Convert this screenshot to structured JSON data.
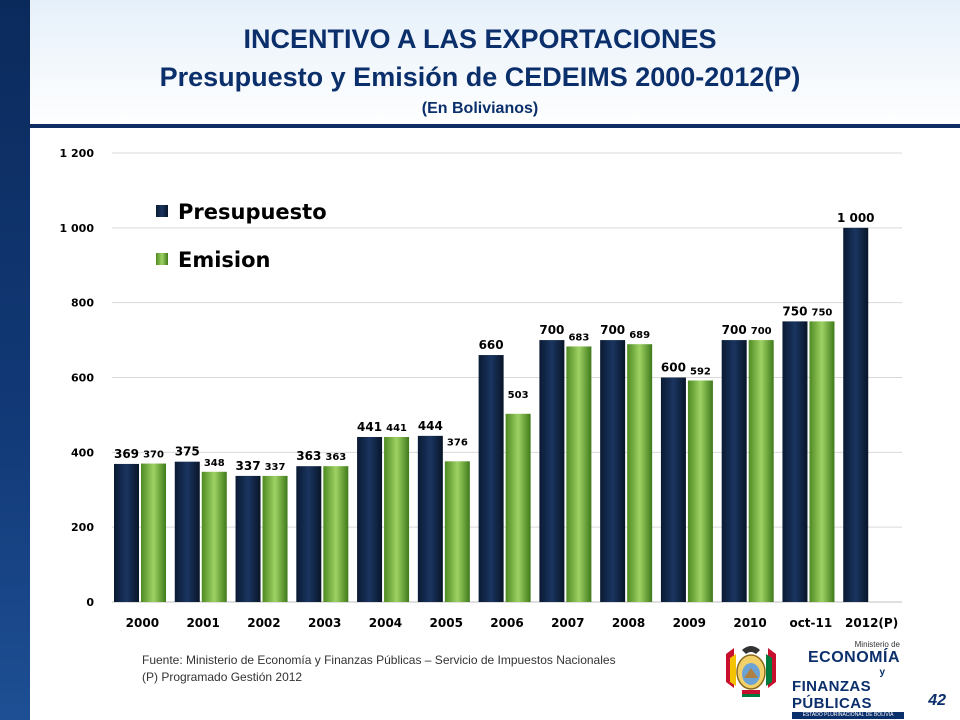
{
  "header": {
    "title_line1": "INCENTIVO A LAS EXPORTACIONES",
    "title_line2": "Presupuesto y Emisión de CEDEIMS 2000-2012(P)",
    "subtitle": "(En Bolivianos)"
  },
  "chart_data": {
    "type": "bar",
    "categories": [
      "2000",
      "2001",
      "2002",
      "2003",
      "2004",
      "2005",
      "2006",
      "2007",
      "2008",
      "2009",
      "2010",
      "oct-11",
      "2012(P)"
    ],
    "series": [
      {
        "name": "Presupuesto",
        "color": "#0c1e3d",
        "values": [
          369,
          375,
          337,
          363,
          441,
          444,
          660,
          700,
          700,
          600,
          700,
          750,
          1000
        ],
        "labels": [
          "369",
          "375",
          "337",
          "363",
          "441",
          "444",
          "660",
          "700",
          "700",
          "600",
          "700",
          "750",
          "1 000"
        ]
      },
      {
        "name": "Emision",
        "color": "#6fae3a",
        "values": [
          370,
          348,
          337,
          363,
          441,
          376,
          503,
          683,
          689,
          592,
          700,
          750,
          null
        ],
        "labels": [
          "370",
          "348",
          "337",
          "363",
          "441",
          "376",
          "503",
          "683",
          "689",
          "592",
          "700",
          "750",
          ""
        ]
      }
    ],
    "yticks": [
      "0",
      "200",
      "400",
      "600",
      "800",
      "1 000",
      "1 200"
    ],
    "ylim": [
      0,
      1200
    ],
    "grid": true,
    "legend_position": "top-left"
  },
  "footer": {
    "source_line": "Fuente: Ministerio de Economía y Finanzas Públicas – Servicio de Impuestos Nacionales",
    "note_line": "(P) Programado Gestión 2012",
    "page_number": "42"
  },
  "logo": {
    "ministry_small": "Ministerio de",
    "ministry_big": "ECONOMÍA",
    "ministry_y": "y",
    "ministry_fin": "FINANZAS PÚBLICAS",
    "ministry_state": "ESTADO PLURINACIONAL DE BOLIVIA"
  }
}
